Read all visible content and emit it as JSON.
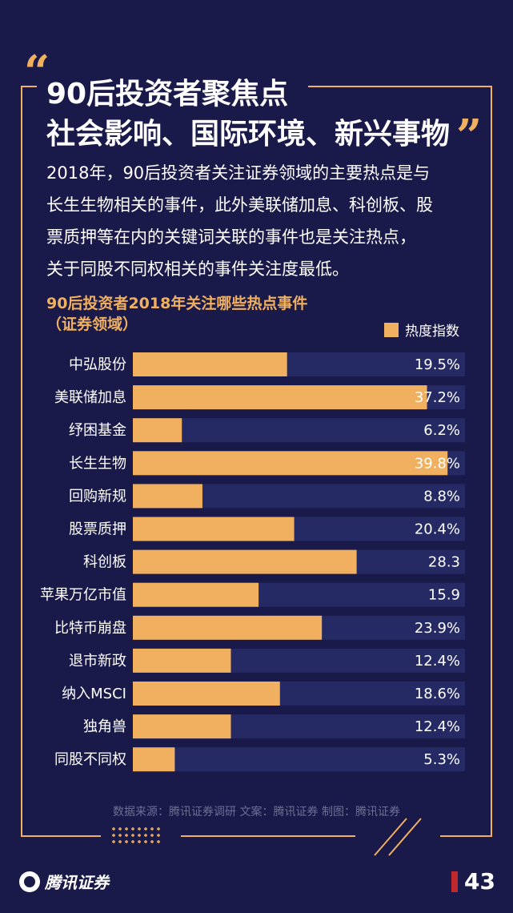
{
  "header": {
    "title_line1": "90后投资者聚焦点",
    "title_line2": "社会影响、国际环境、新兴事物",
    "open_quote": "“",
    "close_quote": "”"
  },
  "description": [
    "2018年，90后投资者关注证券领域的主要热点是与",
    "长生生物相关的事件，此外美联储加息、科创板、股",
    "票质押等在内的关键词关联的事件也是关注热点，",
    "关于同股不同权相关的事件关注度最低。"
  ],
  "chart_data": {
    "type": "bar",
    "orientation": "horizontal",
    "title": "90后投资者2018年关注哪些热点事件",
    "subtitle": "（证券领域）",
    "legend": [
      "热度指数"
    ],
    "legend_position": "top-right",
    "xlim": [
      0,
      42
    ],
    "categories": [
      "中弘股份",
      "美联储加息",
      "纾困基金",
      "长生生物",
      "回购新规",
      "股票质押",
      "科创板",
      "苹果万亿市值",
      "比特币崩盘",
      "退市新政",
      "纳入MSCI",
      "独角兽",
      "同股不同权"
    ],
    "values": [
      19.5,
      37.2,
      6.2,
      39.8,
      8.8,
      20.4,
      28.3,
      15.9,
      23.9,
      12.4,
      18.6,
      12.4,
      5.3
    ],
    "value_labels": [
      "19.5%",
      "37.2%",
      "6.2%",
      "39.8%",
      "8.8%",
      "20.4%",
      "28.3",
      "15.9",
      "23.9%",
      "12.4%",
      "18.6%",
      "12.4%",
      "5.3%"
    ],
    "colors": {
      "bar": "#f0b060",
      "track": "#262a64"
    }
  },
  "footer": {
    "source": "数据来源：腾讯证券调研   文案：腾讯证券   制图：腾讯证券",
    "brand": "腾讯证券",
    "page_number": "43"
  },
  "theme": {
    "background": "#1a1a4a",
    "accent": "#f0b060",
    "page_marker": "#c0282e"
  }
}
